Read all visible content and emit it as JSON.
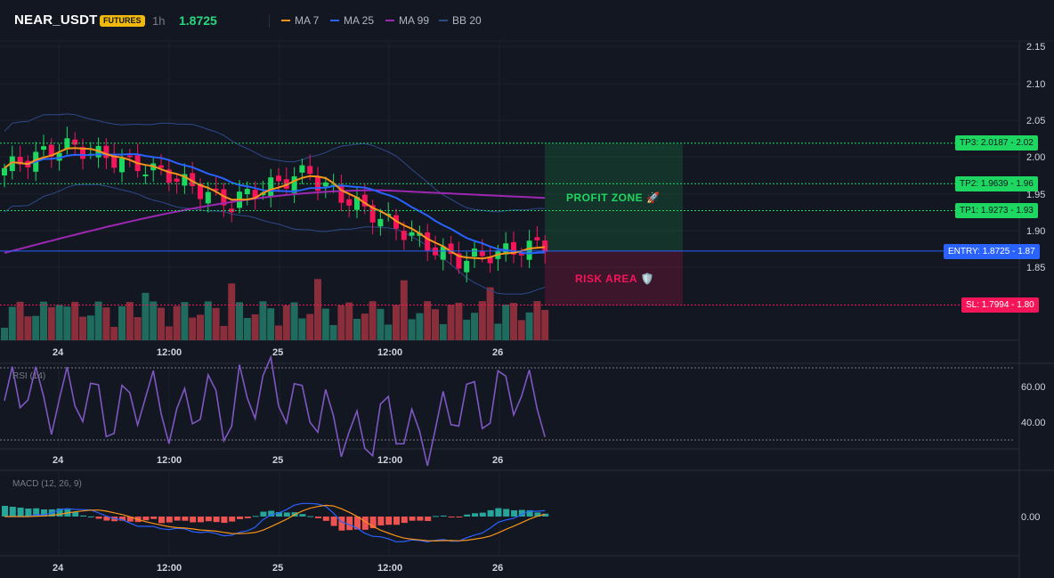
{
  "header": {
    "symbol": "NEAR_USDT",
    "badge": "FUTURES",
    "timeframe": "1h",
    "price": "1.8725",
    "legend": [
      {
        "label": "MA 7",
        "color": "#f7931a"
      },
      {
        "label": "MA 25",
        "color": "#2962ff"
      },
      {
        "label": "MA 99",
        "color": "#9c27b0"
      },
      {
        "label": "BB 20",
        "color": "#1e3a8a"
      }
    ]
  },
  "price_axis": {
    "ticks": [
      "2.15",
      "2.10",
      "2.05",
      "2.00",
      "1.95",
      "1.90",
      "1.85"
    ]
  },
  "levels": [
    {
      "name": "TP3",
      "text": "TP3: 2.0187 - 2.02",
      "value": 2.0187,
      "color": "#1ed760"
    },
    {
      "name": "TP2",
      "text": "TP2: 1.9639 - 1.96",
      "value": 1.9639,
      "color": "#1ed760"
    },
    {
      "name": "TP1",
      "text": "TP1: 1.9273 - 1.93",
      "value": 1.9273,
      "color": "#1ed760"
    },
    {
      "name": "ENTRY",
      "text": "ENTRY: 1.8725 - 1.87",
      "value": 1.8725,
      "color": "#2962ff"
    },
    {
      "name": "SL",
      "text": "SL: 1.7994 - 1.80",
      "value": 1.7994,
      "color": "#f7155a"
    }
  ],
  "zones": {
    "profit": "PROFIT ZONE 🚀",
    "risk": "RISK AREA 🛡️"
  },
  "time_axis": [
    "24",
    "12:00",
    "25",
    "12:00",
    "26"
  ],
  "rsi": {
    "label": "RSI (14)",
    "ticks": [
      "60.00",
      "40.00"
    ]
  },
  "macd": {
    "label": "MACD (12, 26, 9)",
    "ticks": [
      "0.00"
    ]
  },
  "colors": {
    "up": "#1ed760",
    "down": "#f7155a",
    "vol_up": "#1f6b5e",
    "vol_down": "#8a2e3b",
    "background": "#131722"
  }
}
